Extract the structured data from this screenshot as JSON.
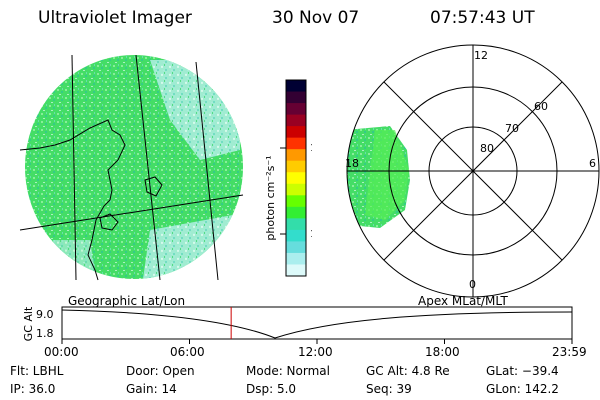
{
  "header": {
    "instrument": "Ultraviolet Imager",
    "date": "30 Nov 07",
    "time": "07:57:43 UT"
  },
  "colorbar": {
    "unit_label": "photon cm⁻²s⁻¹",
    "ticks": [
      "100",
      "10"
    ],
    "colors": [
      "#000033",
      "#330033",
      "#660033",
      "#990022",
      "#cc0000",
      "#ff3300",
      "#ff9900",
      "#ffcc00",
      "#ffff00",
      "#ccff00",
      "#66ff00",
      "#33ee33",
      "#33ddaa",
      "#33ddcc",
      "#66dddd",
      "#aaeeee",
      "#ddfafa"
    ]
  },
  "polar": {
    "mlt_labels": {
      "top": "12",
      "left": "18",
      "right": "6",
      "bottom": "0"
    },
    "lat_labels": [
      "60",
      "70",
      "80"
    ]
  },
  "timeline": {
    "left_title": "Geographic Lat/Lon",
    "right_title": "Apex MLat/MLT",
    "ylabel": "GC Alt",
    "yticks": [
      "9.0",
      "1.8"
    ],
    "xticks": [
      "00:00",
      "06:00",
      "12:00",
      "18:00",
      "23:59"
    ],
    "current_time_hours": 7.96
  },
  "info": {
    "flt": "Flt: LBHL",
    "ip": "IP: 36.0",
    "door": "Door: Open",
    "gain": "Gain: 14",
    "mode": "Mode: Normal",
    "dsp": "Dsp:    5.0",
    "gcalt": "GC Alt: 4.8 Re",
    "seq": "Seq: 39",
    "glat": "GLat: −39.4",
    "glon": "GLon: 142.2"
  }
}
